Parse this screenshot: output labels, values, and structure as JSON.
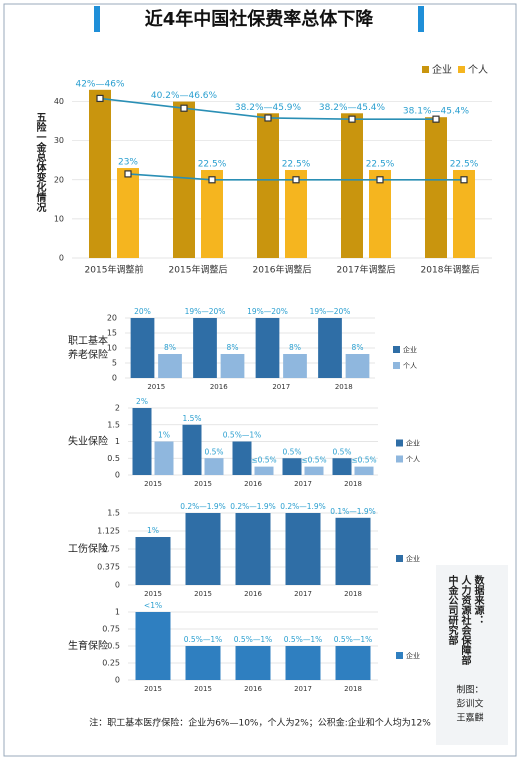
{
  "title": "近4年中国社保费率总体下降",
  "note": "注：职工基本医疗保险：企业为6%—10%，个人为2%；公积金:企业和个人均为12%",
  "source": [
    "数据来源：",
    "人力资源社会保障部",
    "中金公司研究部"
  ],
  "credit": [
    "制图：",
    "彭训文",
    "王嘉麒"
  ],
  "chart_data": [
    {
      "type": "bar",
      "y_label": "五险一金总体变化情况",
      "categories": [
        "2015年调整前",
        "2015年调整后",
        "2016年调整后",
        "2017年调整后",
        "2018年调整后"
      ],
      "ylim": [
        0,
        45
      ],
      "yticks": [
        0,
        10,
        20,
        30,
        40
      ],
      "grid": true,
      "legend": "top-right",
      "series": [
        {
          "name": "企业",
          "color": "#c9950e",
          "values": [
            43,
            40,
            37,
            37,
            36
          ],
          "line_values": [
            40.8,
            38.3,
            35.8,
            35.5,
            35.5
          ],
          "labels": [
            "42%—46%",
            "40.2%—46.6%",
            "38.2%—45.9%",
            "38.2%—45.4%",
            "38.1%—45.4%"
          ]
        },
        {
          "name": "个人",
          "color": "#f5b51f",
          "values": [
            23,
            22.5,
            22.5,
            22.5,
            22.5
          ],
          "line_values": [
            21.5,
            20,
            20,
            20,
            20
          ],
          "labels": [
            "23%",
            "22.5%",
            "22.5%",
            "22.5%",
            "22.5%"
          ]
        }
      ],
      "line_color": "#2a8fb5"
    },
    {
      "type": "bar",
      "title_lines": [
        "职工基本",
        "养老保险"
      ],
      "categories": [
        "2015",
        "2016",
        "2017",
        "2018"
      ],
      "ylim": [
        0,
        20
      ],
      "yticks": [
        0,
        5,
        10,
        15,
        20
      ],
      "grid": true,
      "legend": "right",
      "series": [
        {
          "name": "企业",
          "color": "#2f6ea6",
          "values": [
            20,
            20,
            20,
            20
          ],
          "labels": [
            "20%",
            "19%—20%",
            "19%—20%",
            "19%—20%"
          ]
        },
        {
          "name": "个人",
          "color": "#8fb7de",
          "values": [
            8,
            8,
            8,
            8
          ],
          "labels": [
            "8%",
            "8%",
            "8%",
            "8%"
          ]
        }
      ]
    },
    {
      "type": "bar",
      "title_lines": [
        "失业保险"
      ],
      "categories": [
        "2015",
        "2015",
        "2016",
        "2017",
        "2018"
      ],
      "ylim": [
        0,
        2
      ],
      "yticks": [
        0,
        0.5,
        1,
        1.5,
        2
      ],
      "grid": true,
      "legend": "right",
      "series": [
        {
          "name": "企业",
          "color": "#2f6ea6",
          "values": [
            2,
            1.5,
            1,
            0.5,
            0.5
          ],
          "labels": [
            "2%",
            "1.5%",
            "0.5%—1%",
            "0.5%",
            "0.5%"
          ]
        },
        {
          "name": "个人",
          "color": "#8fb7de",
          "values": [
            1,
            0.5,
            0.25,
            0.25,
            0.25
          ],
          "labels": [
            "1%",
            "0.5%",
            "≤0.5%",
            "≤0.5%",
            "≤0.5%"
          ]
        }
      ]
    },
    {
      "type": "bar",
      "title_lines": [
        "工伤保险"
      ],
      "categories": [
        "2015",
        "2015",
        "2016",
        "2017",
        "2018"
      ],
      "ylim": [
        0,
        1.5
      ],
      "yticks": [
        0,
        0.375,
        0.75,
        1.125,
        1.5
      ],
      "grid": true,
      "legend": "right",
      "series": [
        {
          "name": "企业",
          "color": "#2f6ea6",
          "values": [
            1,
            1.5,
            1.5,
            1.5,
            1.4
          ],
          "labels": [
            "1%",
            "0.2%—1.9%",
            "0.2%—1.9%",
            "0.2%—1.9%",
            "0.1%—1.9%"
          ]
        }
      ]
    },
    {
      "type": "bar",
      "title_lines": [
        "生育保险"
      ],
      "categories": [
        "2015",
        "2015",
        "2016",
        "2017",
        "2018"
      ],
      "ylim": [
        0,
        1
      ],
      "yticks": [
        0,
        0.25,
        0.5,
        0.75,
        1
      ],
      "grid": true,
      "legend": "right",
      "series": [
        {
          "name": "企业",
          "color": "#2f7fc0",
          "values": [
            1,
            0.5,
            0.5,
            0.5,
            0.5
          ],
          "labels": [
            "<1%",
            "0.5%—1%",
            "0.5%—1%",
            "0.5%—1%",
            "0.5%—1%"
          ]
        }
      ]
    }
  ]
}
